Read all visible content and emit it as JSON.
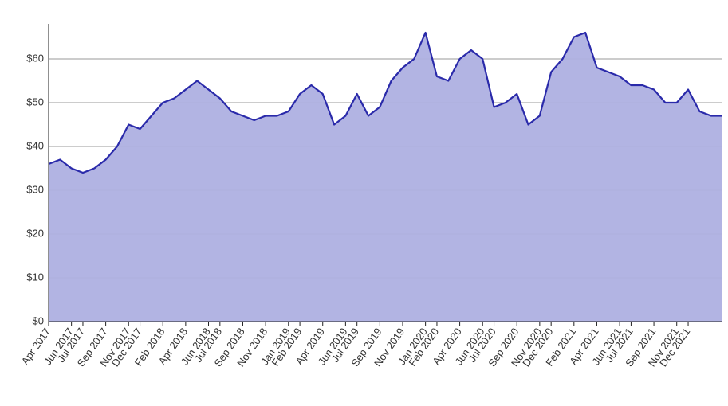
{
  "chart_data": {
    "type": "area",
    "x": [
      "2017-04",
      "2017-05",
      "2017-06",
      "2017-07",
      "2017-08",
      "2017-09",
      "2017-10",
      "2017-11",
      "2017-12",
      "2018-01",
      "2018-02",
      "2018-03",
      "2018-04",
      "2018-05",
      "2018-06",
      "2018-07",
      "2018-08",
      "2018-09",
      "2018-10",
      "2018-11",
      "2018-12",
      "2019-01",
      "2019-02",
      "2019-03",
      "2019-04",
      "2019-05",
      "2019-06",
      "2019-07",
      "2019-08",
      "2019-09",
      "2019-10",
      "2019-11",
      "2019-12",
      "2020-01",
      "2020-02",
      "2020-03",
      "2020-04",
      "2020-05",
      "2020-06",
      "2020-07",
      "2020-08",
      "2020-09",
      "2020-10",
      "2020-11",
      "2020-12",
      "2021-01",
      "2021-02",
      "2021-03",
      "2021-04",
      "2021-05",
      "2021-06",
      "2021-07",
      "2021-08",
      "2021-09",
      "2021-10",
      "2021-11",
      "2021-12",
      "2022-01",
      "2022-02",
      "2022-03"
    ],
    "values": [
      36,
      37,
      35,
      34,
      35,
      37,
      40,
      45,
      44,
      47,
      50,
      51,
      53,
      55,
      53,
      51,
      48,
      47,
      46,
      47,
      47,
      48,
      52,
      54,
      52,
      45,
      47,
      52,
      47,
      49,
      55,
      58,
      60,
      66,
      56,
      55,
      60,
      62,
      60,
      49,
      50,
      52,
      45,
      47,
      57,
      60,
      65,
      66,
      58,
      57,
      56,
      54,
      54,
      53,
      50,
      50,
      53,
      48,
      47,
      47
    ],
    "color": "#2a2aaa",
    "fill_color": "#aeb0e2",
    "xlim": [
      "2017-04",
      "2022-03"
    ],
    "xticks": [
      {
        "value": "2017-04",
        "label": "Apr 2017"
      },
      {
        "value": "2017-06",
        "label": "Jun 2017"
      },
      {
        "value": "2017-07",
        "label": "Jul 2017"
      },
      {
        "value": "2017-09",
        "label": "Sep 2017"
      },
      {
        "value": "2017-11",
        "label": "Nov 2017"
      },
      {
        "value": "2017-12",
        "label": "Dec 2017"
      },
      {
        "value": "2018-02",
        "label": "Feb 2018"
      },
      {
        "value": "2018-04",
        "label": "Apr 2018"
      },
      {
        "value": "2018-06",
        "label": "Jun 2018"
      },
      {
        "value": "2018-07",
        "label": "Jul 2018"
      },
      {
        "value": "2018-09",
        "label": "Sep 2018"
      },
      {
        "value": "2018-11",
        "label": "Nov 2018"
      },
      {
        "value": "2019-01",
        "label": "Jan 2019"
      },
      {
        "value": "2019-02",
        "label": "Feb 2019"
      },
      {
        "value": "2019-04",
        "label": "Apr 2019"
      },
      {
        "value": "2019-06",
        "label": "Jun 2019"
      },
      {
        "value": "2019-07",
        "label": "Jul 2019"
      },
      {
        "value": "2019-09",
        "label": "Sep 2019"
      },
      {
        "value": "2019-11",
        "label": "Nov 2019"
      },
      {
        "value": "2020-01",
        "label": "Jan 2020"
      },
      {
        "value": "2020-02",
        "label": "Feb 2020"
      },
      {
        "value": "2020-04",
        "label": "Apr 2020"
      },
      {
        "value": "2020-06",
        "label": "Jun 2020"
      },
      {
        "value": "2020-07",
        "label": "Jul 2020"
      },
      {
        "value": "2020-09",
        "label": "Sep 2020"
      },
      {
        "value": "2020-11",
        "label": "Nov 2020"
      },
      {
        "value": "2020-12",
        "label": "Dec 2020"
      },
      {
        "value": "2021-02",
        "label": "Feb 2021"
      },
      {
        "value": "2021-04",
        "label": "Apr 2021"
      },
      {
        "value": "2021-06",
        "label": "Jun 2021"
      },
      {
        "value": "2021-07",
        "label": "Jul 2021"
      },
      {
        "value": "2021-09",
        "label": "Sep 2021"
      },
      {
        "value": "2021-11",
        "label": "Nov 2021"
      },
      {
        "value": "2021-12",
        "label": "Dec 2021"
      }
    ],
    "ylim": [
      0,
      68
    ],
    "yticks": [
      {
        "value": 0,
        "label": "$0"
      },
      {
        "value": 10,
        "label": "$10"
      },
      {
        "value": 20,
        "label": "$20"
      },
      {
        "value": 30,
        "label": "$30"
      },
      {
        "value": 40,
        "label": "$40"
      },
      {
        "value": 50,
        "label": "$50"
      },
      {
        "value": 60,
        "label": "$60"
      }
    ],
    "grid": true
  }
}
